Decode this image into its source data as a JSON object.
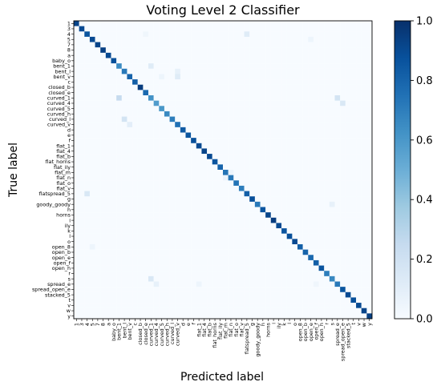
{
  "chart_data": {
    "type": "heatmap",
    "title": "Voting Level 2 Classifier",
    "xlabel": "Predicted label",
    "ylabel": "True label",
    "labels": [
      "1",
      "3",
      "4",
      "5",
      "7",
      "8",
      "a",
      "baby_o",
      "bent_1",
      "bent_l",
      "bent_v",
      "c",
      "closed_b",
      "closed_e",
      "curved_1",
      "curved_4",
      "curved_5",
      "curved_h",
      "curved_l",
      "curved_v",
      "d",
      "e",
      "f",
      "flat_1",
      "flat_4",
      "flat_b",
      "flat_horns",
      "flat_ily",
      "flat_m",
      "flat_n",
      "flat_o",
      "flat_v",
      "flatspread_5",
      "g",
      "goody_goody",
      "h",
      "horns",
      "i",
      "ily",
      "k",
      "l",
      "o",
      "open_8",
      "open_b",
      "open_e",
      "open_f",
      "open_h",
      "r",
      "s",
      "spread_e",
      "spread_open_e",
      "stacked_5",
      "t",
      "v",
      "w",
      "y"
    ],
    "diagonal": [
      0.92,
      0.9,
      0.86,
      0.9,
      0.92,
      0.94,
      0.9,
      0.88,
      0.65,
      0.72,
      0.8,
      0.82,
      0.95,
      0.78,
      0.62,
      0.58,
      0.6,
      0.66,
      0.7,
      0.75,
      0.84,
      0.86,
      0.88,
      0.9,
      0.92,
      0.9,
      0.86,
      0.8,
      0.74,
      0.72,
      0.74,
      0.7,
      0.82,
      0.88,
      0.72,
      0.86,
      0.92,
      0.95,
      0.9,
      0.86,
      0.88,
      0.9,
      0.82,
      0.8,
      0.78,
      0.82,
      0.86,
      0.7,
      0.66,
      0.72,
      0.86,
      0.9,
      0.88,
      0.9,
      0.92,
      0.94
    ],
    "off_diagonal": [
      {
        "row": "4",
        "col": "closed_e",
        "value": 0.04
      },
      {
        "row": "4",
        "col": "flatspread_5",
        "value": 0.12
      },
      {
        "row": "5",
        "col": "open_e",
        "value": 0.05
      },
      {
        "row": "bent_1",
        "col": "curved_1",
        "value": 0.12
      },
      {
        "row": "bent_l",
        "col": "curved_v",
        "value": 0.08
      },
      {
        "row": "bent_v",
        "col": "curved_5",
        "value": 0.05
      },
      {
        "row": "bent_v",
        "col": "curved_v",
        "value": 0.12
      },
      {
        "row": "curved_1",
        "col": "bent_1",
        "value": 0.25
      },
      {
        "row": "curved_1",
        "col": "spread_e",
        "value": 0.18
      },
      {
        "row": "curved_4",
        "col": "spread_open_e",
        "value": 0.15
      },
      {
        "row": "curved_l",
        "col": "bent_l",
        "value": 0.18
      },
      {
        "row": "curved_v",
        "col": "bent_v",
        "value": 0.1
      },
      {
        "row": "flat_m",
        "col": "flat_n",
        "value": 0.05
      },
      {
        "row": "flat_n",
        "col": "flat_m",
        "value": 0.06
      },
      {
        "row": "flatspread_5",
        "col": "4",
        "value": 0.15
      },
      {
        "row": "goody_goody",
        "col": "s",
        "value": 0.08
      },
      {
        "row": "s",
        "col": "curved_1",
        "value": 0.15
      },
      {
        "row": "spread_e",
        "col": "curved_4",
        "value": 0.08
      },
      {
        "row": "spread_e",
        "col": "flat_1",
        "value": 0.05
      },
      {
        "row": "spread_e",
        "col": "open_f",
        "value": 0.04
      },
      {
        "row": "open_8",
        "col": "5",
        "value": 0.05
      }
    ],
    "colorbar": {
      "min": 0.0,
      "max": 1.0,
      "ticks": [
        "0.0",
        "0.2",
        "0.4",
        "0.6",
        "0.8",
        "1.0"
      ],
      "colormap": "Blues"
    }
  }
}
